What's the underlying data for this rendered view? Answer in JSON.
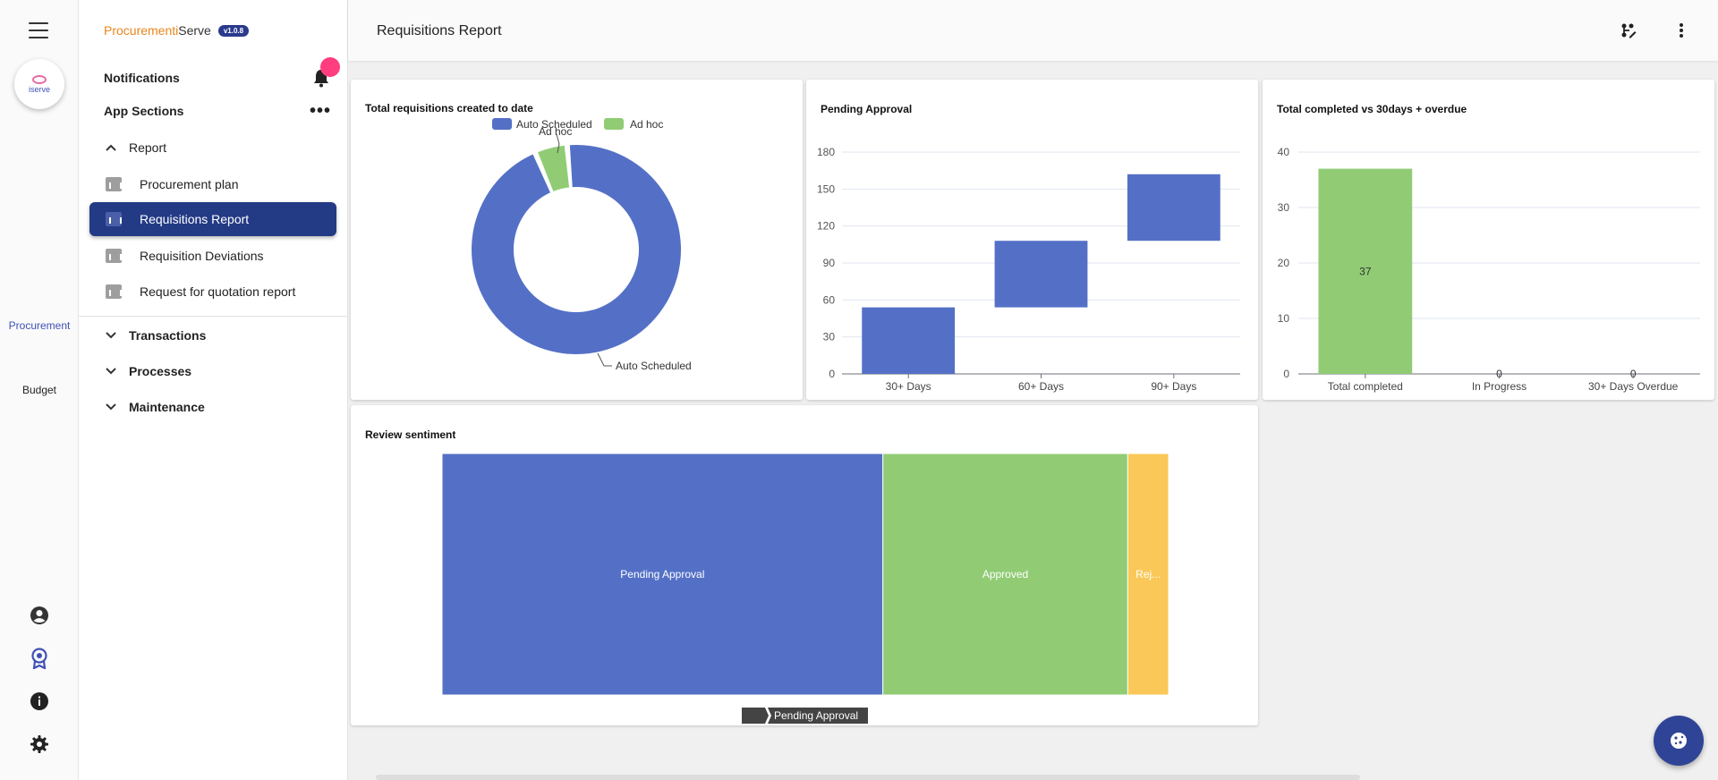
{
  "brand": {
    "part1": "Procurementi",
    "part2": "Serve",
    "version": "v1.0.8"
  },
  "rail": {
    "logo_text": "iserve",
    "procurement": "Procurement",
    "budget": "Budget",
    "accent": "#3f51b5"
  },
  "sidebar": {
    "notifications": "Notifications",
    "app_sections": "App Sections",
    "report": "Report",
    "items": [
      "Procurement plan",
      "Requisitions Report",
      "Requisition Deviations",
      "Request for quotation report"
    ],
    "transactions": "Transactions",
    "processes": "Processes",
    "maintenance": "Maintenance"
  },
  "header": {
    "title": "Requisitions Report"
  },
  "colors": {
    "blue": "#5470c6",
    "green": "#91cc75",
    "yellow": "#fac858",
    "active_nav": "#233a85"
  },
  "chart_data": [
    {
      "type": "pie",
      "title": "Total requisitions created to date",
      "legend": [
        "Auto Scheduled",
        "Ad hoc"
      ],
      "slices": [
        {
          "name": "Auto Scheduled",
          "value": 95
        },
        {
          "name": "Ad hoc",
          "value": 5
        }
      ],
      "labels": [
        "Ad hoc",
        "Auto Scheduled"
      ]
    },
    {
      "type": "bar",
      "title": "Pending Approval",
      "categories": [
        "30+ Days",
        "60+ Days",
        "90+ Days"
      ],
      "ranges": [
        [
          0,
          54
        ],
        [
          54,
          108
        ],
        [
          108,
          162
        ]
      ],
      "ylim": [
        0,
        180
      ],
      "yticks": [
        0,
        30,
        60,
        90,
        120,
        150,
        180
      ]
    },
    {
      "type": "bar",
      "title": "Total completed vs 30days + overdue",
      "categories": [
        "Total completed",
        "In Progress",
        "30+ Days Overdue"
      ],
      "values": [
        37,
        0,
        0
      ],
      "value_labels": [
        "37",
        "0",
        "0"
      ],
      "ylim": [
        0,
        40
      ],
      "yticks": [
        0,
        10,
        20,
        30,
        40
      ]
    },
    {
      "type": "bar",
      "title": "Review sentiment",
      "segments": [
        {
          "name": "Pending Approval",
          "label": "Pending Approval",
          "value": 54
        },
        {
          "name": "Approved",
          "label": "Approved",
          "value": 30
        },
        {
          "name": "Rejected",
          "label": "Rej...",
          "value": 5
        }
      ],
      "breadcrumb": "Pending Approval"
    }
  ]
}
